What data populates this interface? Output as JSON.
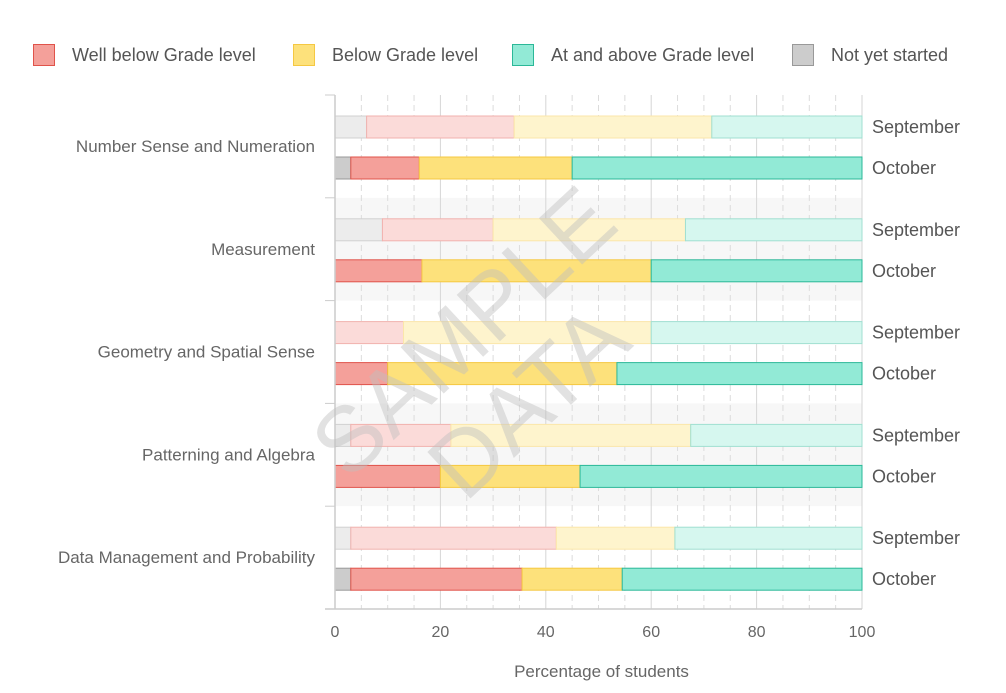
{
  "chart_data": {
    "type": "bar",
    "orientation": "horizontal",
    "stacked": true,
    "xlabel": "Percentage of students",
    "xlim": [
      0,
      100
    ],
    "xticks": [
      0,
      20,
      40,
      60,
      80,
      100
    ],
    "watermark": "SAMPLE DATA",
    "legend_position": "top",
    "categories": [
      "Number Sense and Numeration",
      "Measurement",
      "Geometry and Spatial Sense",
      "Patterning and Algebra",
      "Data Management and Probability"
    ],
    "periods": [
      "September",
      "October"
    ],
    "series": [
      {
        "name": "Not yet started",
        "color": "#cccccc",
        "border": "#999999",
        "values": {
          "September": [
            6,
            9,
            0,
            3,
            3
          ],
          "October": [
            3,
            0,
            0,
            0,
            3
          ]
        }
      },
      {
        "name": "Well below Grade level",
        "color": "#f4a09a",
        "border": "#e0534a",
        "values": {
          "September": [
            28,
            21,
            13,
            19,
            39
          ],
          "October": [
            13,
            16.5,
            10,
            20,
            32.5
          ]
        }
      },
      {
        "name": "Below Grade level",
        "color": "#fde17b",
        "border": "#f5c842",
        "values": {
          "September": [
            37.5,
            36.5,
            47,
            45.5,
            22.5
          ],
          "October": [
            29,
            43.5,
            43.5,
            26.5,
            19
          ]
        }
      },
      {
        "name": "At and above Grade level",
        "color": "#92ead6",
        "border": "#2bb898",
        "values": {
          "September": [
            28.5,
            33.5,
            40,
            32.5,
            35.5
          ],
          "October": [
            55,
            40,
            46.5,
            53.5,
            45.5
          ]
        }
      }
    ],
    "legend_order": [
      "Well below Grade level",
      "Below Grade level",
      "At and above Grade level",
      "Not yet started"
    ]
  }
}
